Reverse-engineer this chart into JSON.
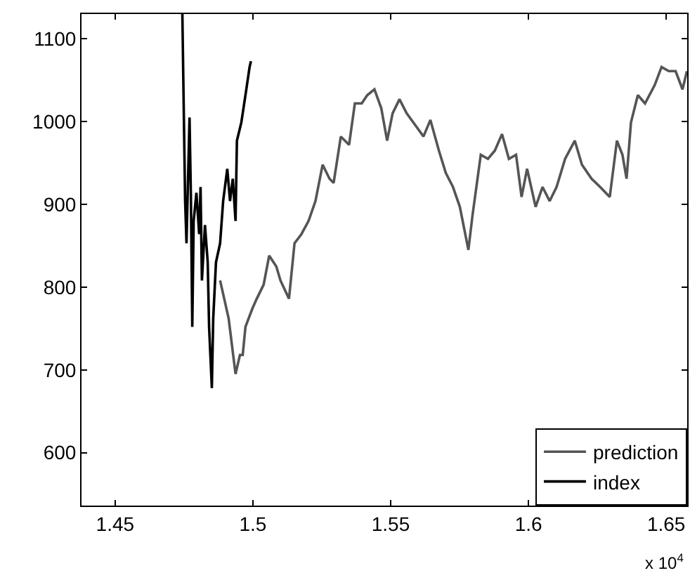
{
  "chart_data": {
    "type": "line",
    "xlim": [
      1.4378,
      1.6576
    ],
    "xticks": [
      1.45,
      1.5,
      1.55,
      1.6,
      1.65
    ],
    "ylim": [
      536,
      1130
    ],
    "yticks": [
      600,
      700,
      800,
      900,
      1000,
      1100
    ],
    "annotations": [
      "x 10$^{4}$"
    ],
    "grid": false,
    "legend": "bottom right",
    "marker": "none",
    "line_style": "solid",
    "series": [
      {
        "name": "prediction",
        "color": "#555555",
        "x": [
          1.4881,
          1.4912,
          1.4937,
          1.4953,
          1.4963,
          1.4973,
          1.4998,
          1.5014,
          1.5039,
          1.5059,
          1.5085,
          1.51,
          1.5131,
          1.5151,
          1.5176,
          1.5202,
          1.5227,
          1.5253,
          1.5278,
          1.5293,
          1.5319,
          1.5349,
          1.537,
          1.5395,
          1.5415,
          1.5441,
          1.5466,
          1.5487,
          1.5507,
          1.5532,
          1.5558,
          1.5593,
          1.5619,
          1.5644,
          1.5675,
          1.57,
          1.5726,
          1.5751,
          1.5782,
          1.5797,
          1.5827,
          1.5853,
          1.5878,
          1.5904,
          1.5929,
          1.5955,
          1.5975,
          1.5995,
          1.6026,
          1.6051,
          1.6077,
          1.6102,
          1.6133,
          1.6168,
          1.6194,
          1.6229,
          1.626,
          1.6295,
          1.6321,
          1.6341,
          1.6356,
          1.6372,
          1.6397,
          1.6423,
          1.6458,
          1.6483,
          1.6509,
          1.6534,
          1.6559,
          1.6575
        ],
        "values": [
          808,
          762,
          695,
          718,
          718,
          752,
          774,
          786,
          803,
          838,
          825,
          808,
          786,
          853,
          864,
          880,
          904,
          948,
          931,
          926,
          982,
          972,
          1022,
          1022,
          1032,
          1039,
          1016,
          977,
          1010,
          1027,
          1010,
          994,
          982,
          1002,
          965,
          938,
          921,
          897,
          845,
          887,
          960,
          955,
          965,
          985,
          955,
          960,
          909,
          943,
          897,
          921,
          904,
          921,
          955,
          977,
          948,
          931,
          921,
          909,
          977,
          960,
          931,
          999,
          1032,
          1022,
          1044,
          1066,
          1061,
          1061,
          1039,
          1061
        ]
      },
      {
        "name": "index",
        "color": "#000000",
        "x": [
          1.4744,
          1.4749,
          1.4754,
          1.4759,
          1.477,
          1.4775,
          1.478,
          1.4785,
          1.4795,
          1.4805,
          1.481,
          1.4815,
          1.4826,
          1.4836,
          1.4841,
          1.4851,
          1.4856,
          1.4866,
          1.4881,
          1.4892,
          1.4907,
          1.4917,
          1.4927,
          1.4937,
          1.4942,
          1.4958,
          1.4973,
          1.4988,
          1.4993
        ],
        "values": [
          1130,
          1016,
          904,
          853,
          1005,
          909,
          752,
          880,
          914,
          864,
          921,
          808,
          875,
          830,
          752,
          678,
          762,
          830,
          853,
          904,
          943,
          904,
          931,
          880,
          977,
          999,
          1032,
          1066,
          1073
        ]
      }
    ]
  }
}
